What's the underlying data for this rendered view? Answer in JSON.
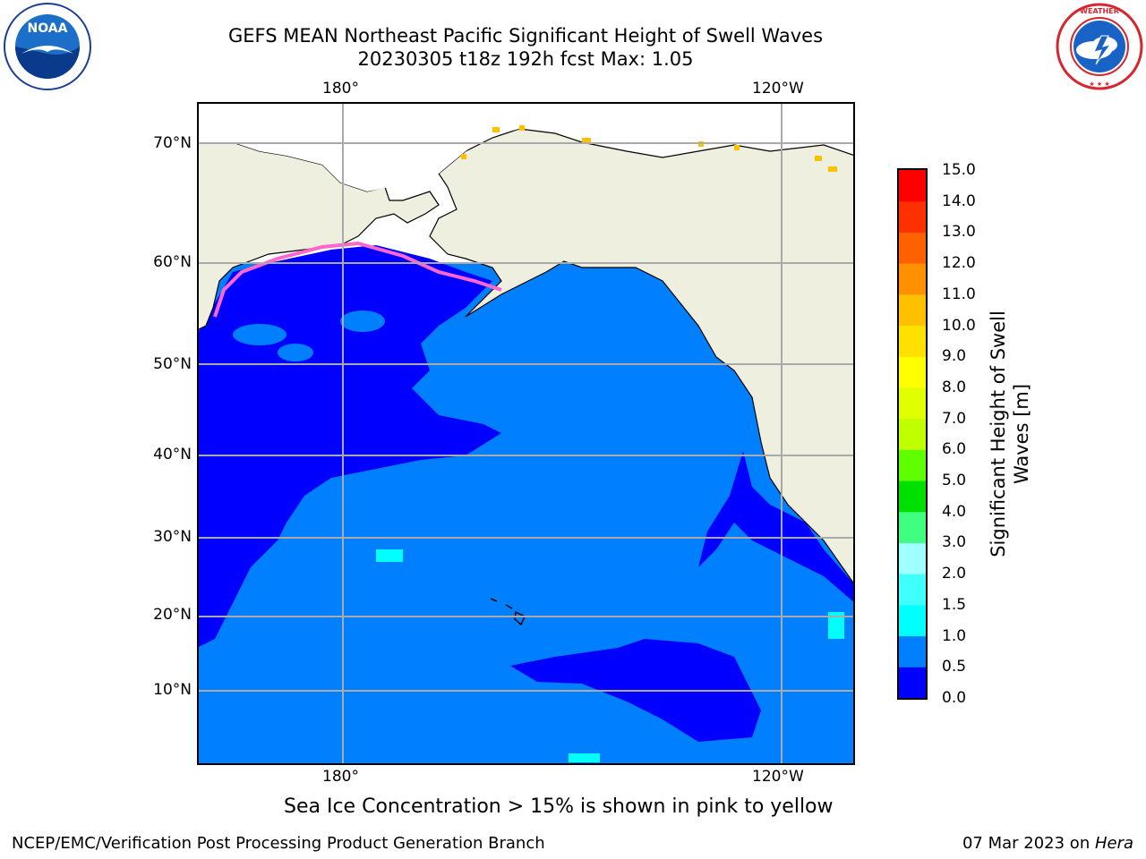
{
  "header": {
    "title_line1": "GEFS MEAN Northeast Pacific Significant Height of Swell Waves",
    "title_line2": "20230305 t18z 192h fcst   Max: 1.05"
  },
  "logos": {
    "left": "NOAA",
    "right": "NATIONAL WEATHER SERVICE"
  },
  "map": {
    "lon_labels_top": [
      "180°",
      "120°W"
    ],
    "lon_labels_bottom": [
      "180°",
      "120°W"
    ],
    "lat_labels": [
      "70°N",
      "60°N",
      "50°N",
      "40°N",
      "30°N",
      "20°N",
      "10°N"
    ],
    "colors": {
      "land": "#efefdf",
      "ocean_low": "#0000ff",
      "ocean_mid": "#0080ff",
      "ocean_high": "#00ffff",
      "ice": "#ff66cc"
    }
  },
  "colorbar": {
    "ticks": [
      "15.0",
      "14.0",
      "13.0",
      "12.0",
      "11.0",
      "10.0",
      "9.0",
      "8.0",
      "7.0",
      "6.0",
      "5.0",
      "4.0",
      "3.0",
      "2.0",
      "1.5",
      "1.0",
      "0.5",
      "0.0"
    ],
    "colors_bottom_to_top": [
      "#0000ff",
      "#0080ff",
      "#00ffff",
      "#40ffff",
      "#a0ffff",
      "#40ff80",
      "#00e000",
      "#60ff00",
      "#c0ff00",
      "#e0ff00",
      "#ffff00",
      "#ffe000",
      "#ffc000",
      "#ff9000",
      "#ff6000",
      "#ff3000",
      "#ff0000"
    ],
    "label": "Significant Height of Swell\nWaves [m]"
  },
  "note": "Sea Ice Concentration > 15% is shown in pink to yellow",
  "footer": {
    "left": "NCEP/EMC/Verification Post Processing Product Generation Branch",
    "right_date": "07 Mar 2023 on ",
    "right_host": "Hera"
  }
}
